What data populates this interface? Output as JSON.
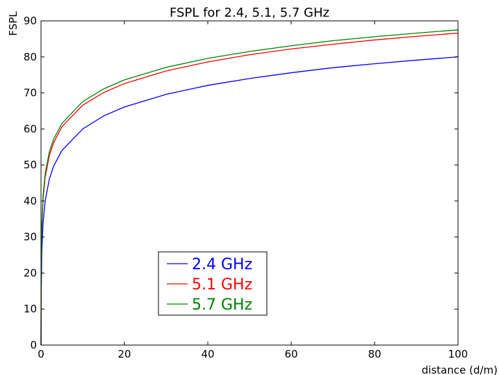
{
  "chart_data": {
    "type": "line",
    "title": "FSPL for 2.4, 5.1, 5.7 GHz",
    "xlabel": "distance (d/m)",
    "ylabel": "FSPL",
    "xlim": [
      0,
      100
    ],
    "ylim": [
      0,
      90
    ],
    "xticks": [
      0,
      20,
      40,
      60,
      80,
      100
    ],
    "yticks": [
      0,
      10,
      20,
      30,
      40,
      50,
      60,
      70,
      80,
      90
    ],
    "grid": false,
    "legend_position": "lower-left",
    "series": [
      {
        "name": "2.4 GHz",
        "color": "#0000ff",
        "x": [
          0.05,
          0.2,
          0.5,
          1,
          2,
          3,
          5,
          10,
          15,
          20,
          30,
          40,
          50,
          60,
          70,
          80,
          90,
          100
        ],
        "y": [
          14.0,
          26.0,
          34.0,
          40.0,
          46.1,
          49.6,
          54.0,
          60.0,
          63.6,
          66.1,
          69.6,
          72.1,
          74.0,
          75.6,
          77.0,
          78.1,
          79.1,
          80.0
        ]
      },
      {
        "name": "5.1 GHz",
        "color": "#ff0000",
        "x": [
          0.05,
          0.2,
          0.5,
          1,
          2,
          3,
          5,
          10,
          15,
          20,
          30,
          40,
          50,
          60,
          70,
          80,
          90,
          100
        ],
        "y": [
          20.6,
          32.6,
          40.6,
          46.6,
          52.6,
          56.1,
          60.6,
          66.6,
          70.1,
          72.6,
          76.1,
          78.6,
          80.6,
          82.2,
          83.5,
          84.7,
          85.7,
          86.6
        ]
      },
      {
        "name": "5.7 GHz",
        "color": "#008000",
        "x": [
          0.05,
          0.2,
          0.5,
          1,
          2,
          3,
          5,
          10,
          15,
          20,
          30,
          40,
          50,
          60,
          70,
          80,
          90,
          100
        ],
        "y": [
          21.5,
          33.5,
          41.5,
          47.6,
          53.6,
          57.1,
          61.5,
          67.6,
          71.1,
          73.6,
          77.1,
          79.6,
          81.5,
          83.1,
          84.5,
          85.6,
          86.6,
          87.5
        ]
      }
    ]
  }
}
